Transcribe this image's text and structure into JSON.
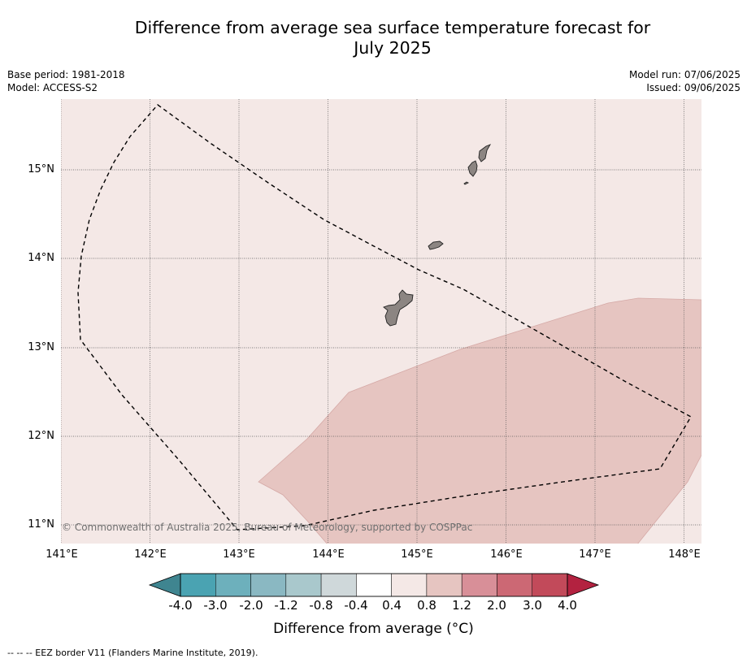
{
  "title": {
    "line1": "Difference from average sea surface temperature forecast for",
    "line2": "July 2025"
  },
  "meta_left": {
    "base_period": "Base period: 1981-2018",
    "model": "Model: ACCESS-S2"
  },
  "meta_right": {
    "model_run": "Model run: 07/06/2025",
    "issued": "Issued: 09/06/2025"
  },
  "map": {
    "latitude_labels": [
      "15°N",
      "14°N",
      "13°N",
      "12°N",
      "11°N"
    ],
    "longitude_labels": [
      "141°E",
      "142°E",
      "143°E",
      "144°E",
      "145°E",
      "146°E",
      "147°E",
      "148°E"
    ],
    "lon_range": [
      141,
      148.2
    ],
    "lat_range": [
      10.8,
      15.8
    ],
    "background_color": "#f4e8e6",
    "anomaly_region_color": "#e6c5c1",
    "anomaly_region_category": "0.8 to 1.2",
    "background_category": "0.4 to 0.8",
    "islands": [
      "land-mass"
    ],
    "eez_line_style": "dashed",
    "copyright": "© Commonwealth of Australia 2025, Bureau of Meteorology, supported by COSPPac"
  },
  "colorbar": {
    "tick_labels": [
      "-4.0",
      "-3.0",
      "-2.0",
      "-1.2",
      "-0.8",
      "-0.4",
      "0.4",
      "0.8",
      "1.2",
      "2.0",
      "3.0",
      "4.0"
    ],
    "colors": [
      "#4aa3b2",
      "#6db0bc",
      "#8ab8c2",
      "#a9c8cc",
      "#cfd8da",
      "#ffffff",
      "#f4e8e6",
      "#e6c5c1",
      "#d88f98",
      "#cc6874",
      "#c24a5a"
    ],
    "under_color": "#3f8590",
    "over_color": "#b32240",
    "label": "Difference from average (°C)"
  },
  "footer": "--  --  -- EEZ border V11 (Flanders Marine Institute, 2019)."
}
